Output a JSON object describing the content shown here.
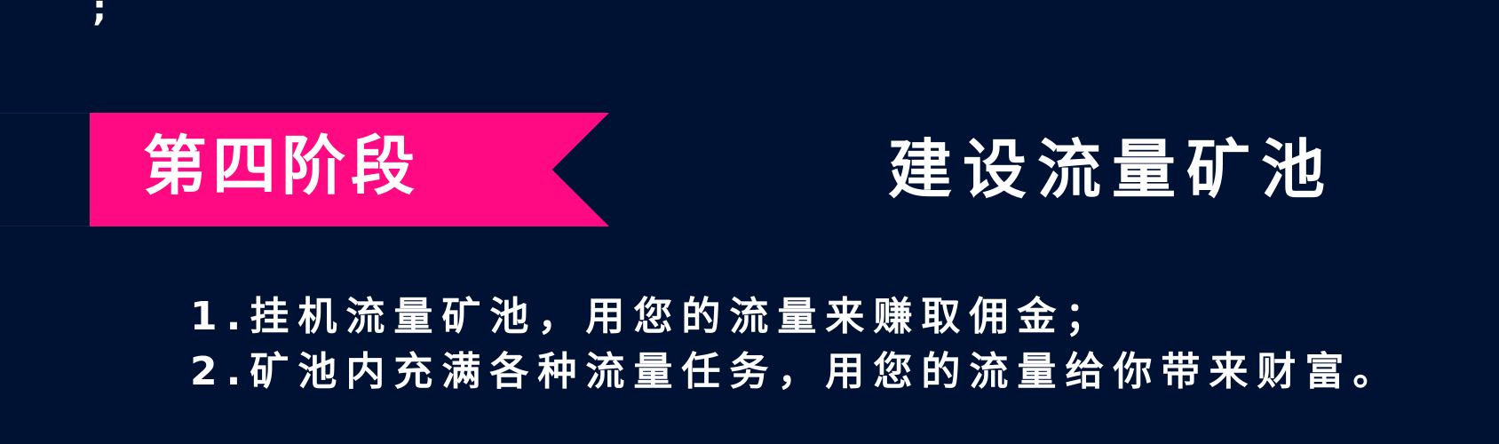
{
  "top_fragment": ";",
  "stage": {
    "ribbon_label": "第四阶段",
    "title": "建设流量矿池"
  },
  "items": [
    "1.挂机流量矿池，用您的流量来赚取佣金；",
    "2.矿池内充满各种流量任务，用您的流量给你带来财富。"
  ],
  "colors": {
    "background": "#001233",
    "ribbon": "#ff0a82",
    "text": "#ffffff"
  }
}
